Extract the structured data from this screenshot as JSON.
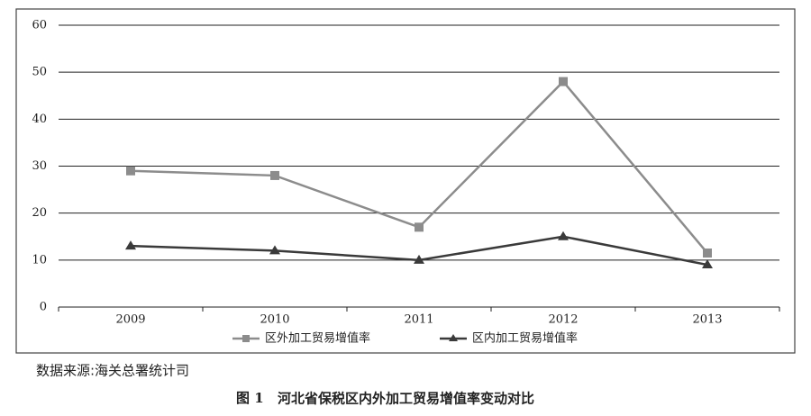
{
  "chart_data": {
    "type": "line",
    "categories": [
      "2009",
      "2010",
      "2011",
      "2012",
      "2013"
    ],
    "series": [
      {
        "name": "区外加工贸易增值率",
        "color": "#8c8c8c",
        "marker": "square",
        "values": [
          29,
          28,
          17,
          48,
          11.5
        ]
      },
      {
        "name": "区内加工贸易增值率",
        "color": "#3a3a3a",
        "marker": "triangle",
        "values": [
          13,
          12,
          10,
          15,
          9
        ]
      }
    ],
    "ylim": [
      0,
      60
    ],
    "yticks": [
      0,
      10,
      20,
      30,
      40,
      50,
      60
    ],
    "grid": true,
    "legend": "bottom",
    "source": "数据来源:海关总署统计司",
    "caption_label": "图 1",
    "title": "河北省保税区内外加工贸易增值率变动对比"
  }
}
